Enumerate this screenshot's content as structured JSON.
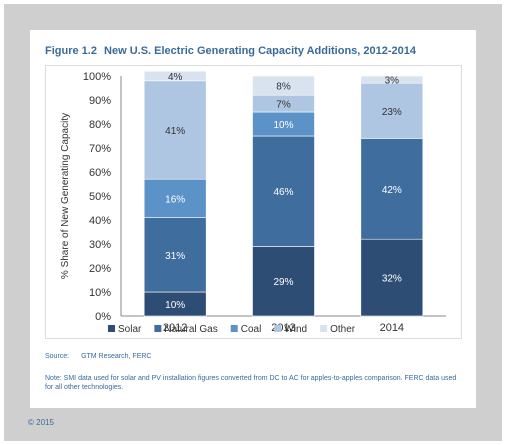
{
  "figure": {
    "number": "Figure 1.2",
    "title": "New U.S. Electric Generating Capacity Additions, 2012-2014"
  },
  "chart_data": {
    "type": "bar",
    "stacked": true,
    "categories": [
      "2012",
      "2013",
      "2014"
    ],
    "ylabel": "% Share of New Generating Capacity",
    "ylim": [
      0,
      100
    ],
    "yticks": [
      "0%",
      "10%",
      "20%",
      "30%",
      "40%",
      "50%",
      "60%",
      "70%",
      "80%",
      "90%",
      "100%"
    ],
    "legend_position": "bottom",
    "series": [
      {
        "name": "Solar",
        "color": "#2e4d74",
        "values": [
          10,
          29,
          32
        ],
        "labels": [
          "10%",
          "29%",
          "32%"
        ],
        "label_color": "#ffffff"
      },
      {
        "name": "Natural Gas",
        "color": "#3f6e9e",
        "values": [
          31,
          46,
          42
        ],
        "labels": [
          "31%",
          "46%",
          "42%"
        ],
        "label_color": "#ffffff"
      },
      {
        "name": "Coal",
        "color": "#5b93c8",
        "values": [
          16,
          10,
          0
        ],
        "labels": [
          "16%",
          "10%",
          ""
        ],
        "label_color": "#ffffff"
      },
      {
        "name": "Wind",
        "color": "#aec6e2",
        "values": [
          41,
          7,
          23
        ],
        "labels": [
          "41%",
          "7%",
          "23%"
        ],
        "label_color": "#333333"
      },
      {
        "name": "Other",
        "color": "#d8e3ef",
        "values": [
          4,
          8,
          3
        ],
        "labels": [
          "4%",
          "8%",
          "3%"
        ],
        "label_color": "#333333"
      }
    ]
  },
  "source": {
    "label": "Source:",
    "text": "GTM Research, FERC"
  },
  "note": "Note: SMI data used for solar and PV installation figures converted from DC to AC for apples-to-apples comparison. FERC data used for all other technologies.",
  "copyright": "© 2015"
}
